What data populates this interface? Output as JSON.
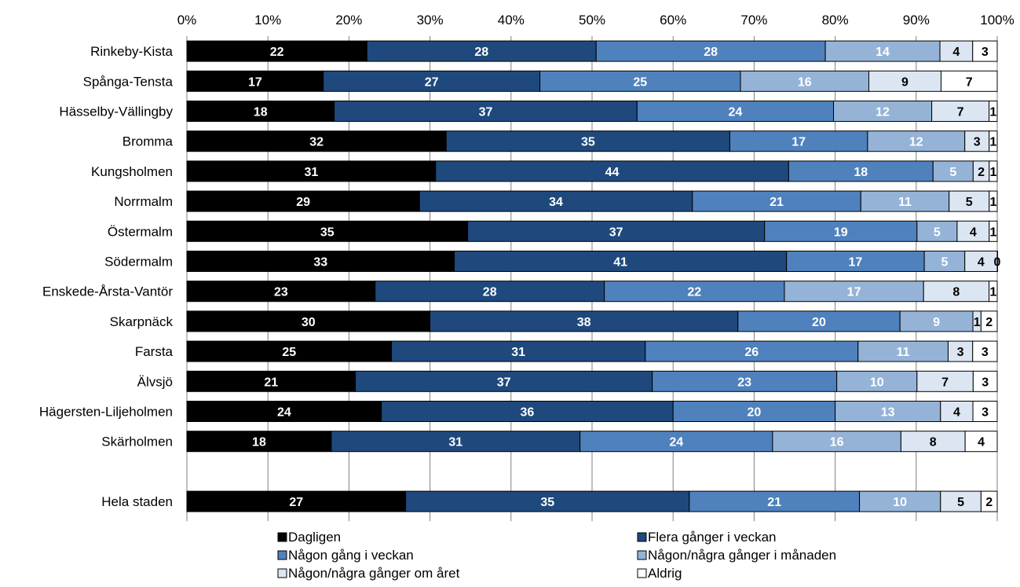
{
  "chart_data": {
    "type": "bar",
    "orientation": "horizontal",
    "stacked": "percent",
    "title": "",
    "xlabel": "",
    "ylabel": "",
    "xlim": [
      0,
      100
    ],
    "x_ticks": [
      "0%",
      "10%",
      "20%",
      "30%",
      "40%",
      "50%",
      "60%",
      "70%",
      "80%",
      "90%",
      "100%"
    ],
    "grid": "vertical",
    "legend_position": "bottom",
    "categories": [
      "Rinkeby-Kista",
      "Spånga-Tensta",
      "Hässelby-Vällingby",
      "Bromma",
      "Kungsholmen",
      "Norrmalm",
      "Östermalm",
      "Södermalm",
      "Enskede-Årsta-Vantör",
      "Skarpnäck",
      "Farsta",
      "Älvsjö",
      "Hägersten-Liljeholmen",
      "Skärholmen",
      "",
      "Hela staden"
    ],
    "series": [
      {
        "name": "Dagligen",
        "color": "#000000",
        "label_color": "#ffffff",
        "values": [
          22,
          17,
          18,
          32,
          31,
          29,
          35,
          33,
          23,
          30,
          25,
          21,
          24,
          18,
          null,
          27
        ]
      },
      {
        "name": "Flera gånger i veckan",
        "color": "#1f497d",
        "label_color": "#ffffff",
        "values": [
          28,
          27,
          37,
          35,
          44,
          34,
          37,
          41,
          28,
          38,
          31,
          37,
          36,
          31,
          null,
          35
        ]
      },
      {
        "name": "Någon gång i veckan",
        "color": "#4f81bd",
        "label_color": "#ffffff",
        "values": [
          28,
          25,
          24,
          17,
          18,
          21,
          19,
          17,
          22,
          20,
          26,
          23,
          20,
          24,
          null,
          21
        ]
      },
      {
        "name": "Någon/några gånger i månaden",
        "color": "#95b3d7",
        "label_color": "#ffffff",
        "values": [
          14,
          16,
          12,
          12,
          5,
          11,
          5,
          5,
          17,
          9,
          11,
          10,
          13,
          16,
          null,
          10
        ]
      },
      {
        "name": "Någon/några gånger om året",
        "color": "#dce6f2",
        "label_color": "#000000",
        "values": [
          4,
          9,
          7,
          3,
          2,
          5,
          4,
          4,
          8,
          1,
          3,
          7,
          4,
          8,
          null,
          5
        ]
      },
      {
        "name": "Aldrig",
        "color": "#ffffff",
        "label_color": "#000000",
        "values": [
          3,
          7,
          1,
          1,
          1,
          1,
          1,
          0,
          1,
          2,
          3,
          3,
          3,
          4,
          null,
          2
        ]
      }
    ]
  }
}
